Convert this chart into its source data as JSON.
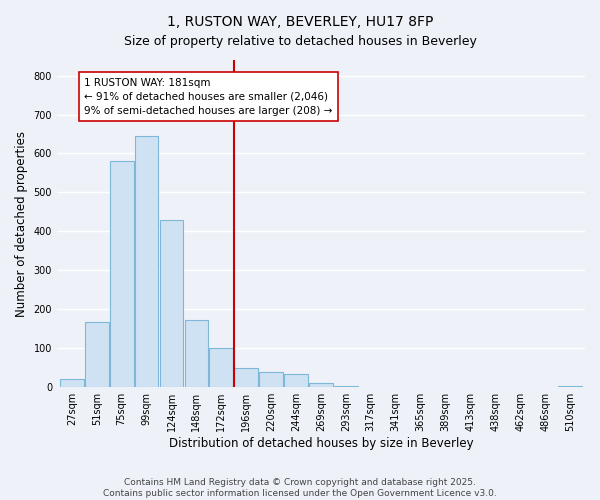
{
  "title": "1, RUSTON WAY, BEVERLEY, HU17 8FP",
  "subtitle": "Size of property relative to detached houses in Beverley",
  "xlabel": "Distribution of detached houses by size in Beverley",
  "ylabel": "Number of detached properties",
  "bar_labels": [
    "27sqm",
    "51sqm",
    "75sqm",
    "99sqm",
    "124sqm",
    "148sqm",
    "172sqm",
    "196sqm",
    "220sqm",
    "244sqm",
    "269sqm",
    "293sqm",
    "317sqm",
    "341sqm",
    "365sqm",
    "389sqm",
    "413sqm",
    "438sqm",
    "462sqm",
    "486sqm",
    "510sqm"
  ],
  "bar_heights": [
    20,
    168,
    580,
    645,
    430,
    173,
    100,
    50,
    40,
    33,
    12,
    2,
    1,
    1,
    0,
    0,
    0,
    0,
    0,
    0,
    2
  ],
  "bar_color": "#cfe2f3",
  "bar_edge_color": "#7db8d8",
  "vline_x_idx": 7,
  "vline_color": "#cc0000",
  "ann_title": "1 RUSTON WAY: 181sqm",
  "ann_line2": "← 91% of detached houses are smaller (2,046)",
  "ann_line3": "9% of semi-detached houses are larger (208) →",
  "ylim": [
    0,
    840
  ],
  "yticks": [
    0,
    100,
    200,
    300,
    400,
    500,
    600,
    700,
    800
  ],
  "footer_line1": "Contains HM Land Registry data © Crown copyright and database right 2025.",
  "footer_line2": "Contains public sector information licensed under the Open Government Licence v3.0.",
  "bg_color": "#eef2f8",
  "grid_color": "#ffffff",
  "title_fontsize": 10,
  "subtitle_fontsize": 9,
  "axis_label_fontsize": 8.5,
  "tick_fontsize": 7,
  "annotation_fontsize": 7.5,
  "footer_fontsize": 6.5
}
